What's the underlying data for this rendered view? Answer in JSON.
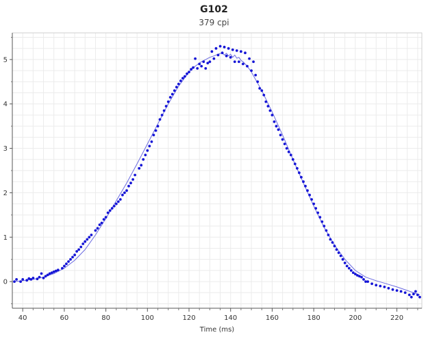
{
  "chart_data": {
    "type": "scatter",
    "title": "G102",
    "subtitle": "379 cpi",
    "xlabel": "Time (ms)",
    "ylabel": "",
    "xlim": [
      35,
      232
    ],
    "ylim": [
      -0.6,
      5.6
    ],
    "x_ticks": [
      40,
      60,
      80,
      100,
      120,
      140,
      160,
      180,
      200,
      220
    ],
    "y_ticks": [
      0,
      1,
      2,
      3,
      4,
      5
    ],
    "grid": true,
    "colors": {
      "points": "#1515d6",
      "line": "#6a6ae0",
      "grid": "#ebebeb"
    },
    "series": [
      {
        "kind": "points",
        "x": [
          36,
          37,
          39,
          40,
          42,
          43,
          44,
          45,
          47,
          48,
          49,
          50,
          51,
          52,
          53,
          54,
          55,
          56,
          57,
          59,
          60,
          61,
          62,
          63,
          64,
          65,
          66,
          67,
          68,
          69,
          70,
          71,
          72,
          73,
          75,
          76,
          77,
          78,
          79,
          80,
          81,
          82,
          83,
          84,
          85,
          86,
          87,
          88,
          89,
          90,
          91,
          92,
          93,
          94,
          96,
          97,
          98,
          99,
          100,
          101,
          102,
          103,
          104,
          105,
          106,
          107,
          108,
          109,
          110,
          111,
          112,
          113,
          114,
          115,
          116,
          117,
          118,
          119,
          120,
          121,
          122,
          123,
          124,
          125,
          126,
          127,
          128,
          129,
          130,
          131,
          132,
          133,
          134,
          135,
          136,
          137,
          138,
          139,
          140,
          141,
          142,
          143,
          144,
          145,
          146,
          147,
          148,
          149,
          150,
          151,
          152,
          153,
          154,
          155,
          156,
          157,
          158,
          159,
          160,
          161,
          162,
          163,
          164,
          165,
          166,
          167,
          168,
          169,
          170,
          171,
          172,
          173,
          174,
          175,
          176,
          177,
          178,
          179,
          180,
          181,
          182,
          183,
          184,
          185,
          186,
          187,
          188,
          189,
          190,
          191,
          192,
          193,
          194,
          195,
          196,
          197,
          198,
          199,
          200,
          201,
          202,
          203,
          204,
          205,
          206,
          208,
          210,
          212,
          214,
          216,
          218,
          220,
          222,
          224,
          226,
          227,
          228,
          229,
          230,
          231
        ],
        "y": [
          0.0,
          0.05,
          0.0,
          0.05,
          0.03,
          0.07,
          0.05,
          0.08,
          0.06,
          0.1,
          0.18,
          0.08,
          0.12,
          0.15,
          0.18,
          0.2,
          0.22,
          0.24,
          0.26,
          0.3,
          0.35,
          0.4,
          0.45,
          0.5,
          0.55,
          0.6,
          0.68,
          0.72,
          0.78,
          0.85,
          0.9,
          0.95,
          1.0,
          1.05,
          1.15,
          1.2,
          1.28,
          1.32,
          1.4,
          1.45,
          1.55,
          1.6,
          1.65,
          1.7,
          1.75,
          1.8,
          1.85,
          1.95,
          2.0,
          2.05,
          2.15,
          2.22,
          2.3,
          2.4,
          2.55,
          2.62,
          2.75,
          2.85,
          2.95,
          3.05,
          3.15,
          3.3,
          3.4,
          3.5,
          3.65,
          3.75,
          3.85,
          3.95,
          4.05,
          4.15,
          4.22,
          4.3,
          4.38,
          4.45,
          4.52,
          4.58,
          4.62,
          4.68,
          4.72,
          4.78,
          4.82,
          5.02,
          4.8,
          4.9,
          4.85,
          4.95,
          4.8,
          4.92,
          4.95,
          5.18,
          5.02,
          5.25,
          5.1,
          5.3,
          5.15,
          5.28,
          5.08,
          5.25,
          5.05,
          5.22,
          4.95,
          5.2,
          4.95,
          5.18,
          4.9,
          5.15,
          4.85,
          5.02,
          4.75,
          4.95,
          4.65,
          4.5,
          4.35,
          4.3,
          4.2,
          4.05,
          3.95,
          3.85,
          3.75,
          3.6,
          3.5,
          3.42,
          3.3,
          3.2,
          3.1,
          3.0,
          2.92,
          2.85,
          2.75,
          2.65,
          2.55,
          2.45,
          2.35,
          2.25,
          2.15,
          2.05,
          1.95,
          1.85,
          1.75,
          1.65,
          1.55,
          1.45,
          1.35,
          1.25,
          1.15,
          1.05,
          0.95,
          0.88,
          0.8,
          0.72,
          0.65,
          0.58,
          0.5,
          0.42,
          0.35,
          0.3,
          0.25,
          0.2,
          0.17,
          0.14,
          0.12,
          0.1,
          0.05,
          0.0,
          0.0,
          -0.05,
          -0.08,
          -0.1,
          -0.12,
          -0.15,
          -0.18,
          -0.2,
          -0.22,
          -0.25,
          -0.3,
          -0.35,
          -0.28,
          -0.22,
          -0.3,
          -0.35
        ]
      },
      {
        "kind": "line",
        "x": [
          36,
          40,
          45,
          50,
          55,
          60,
          65,
          70,
          75,
          80,
          85,
          90,
          95,
          100,
          105,
          110,
          115,
          120,
          123,
          126,
          128,
          130,
          132,
          134,
          136,
          137,
          138,
          139,
          140,
          141,
          142,
          143,
          144,
          145,
          146,
          148,
          150,
          155,
          160,
          165,
          170,
          175,
          180,
          185,
          190,
          195,
          200,
          205,
          210,
          215,
          220,
          225,
          231
        ],
        "y": [
          0.0,
          0.02,
          0.05,
          0.1,
          0.18,
          0.3,
          0.48,
          0.72,
          1.05,
          1.42,
          1.82,
          2.22,
          2.65,
          3.1,
          3.55,
          4.0,
          4.4,
          4.72,
          4.85,
          4.95,
          5.0,
          5.05,
          5.08,
          5.12,
          5.15,
          5.1,
          5.14,
          5.08,
          5.12,
          5.05,
          5.1,
          5.03,
          5.05,
          4.98,
          4.95,
          4.85,
          4.72,
          4.3,
          3.82,
          3.3,
          2.75,
          2.22,
          1.7,
          1.22,
          0.82,
          0.5,
          0.25,
          0.1,
          0.02,
          -0.05,
          -0.12,
          -0.2,
          -0.3
        ]
      }
    ]
  }
}
